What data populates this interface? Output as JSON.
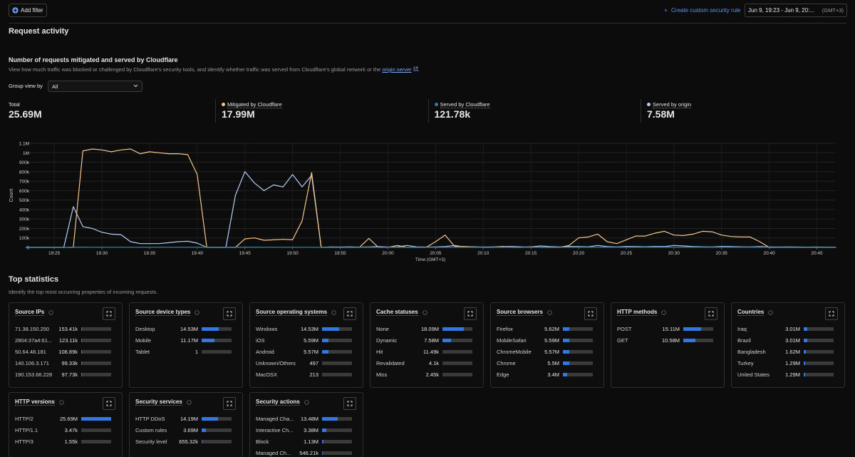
{
  "header": {
    "add_filter": "Add filter",
    "create_rule": "Create custom security rule",
    "date_range": "Jun 9, 19:23 - Jun 9, 20:...",
    "timezone": "(GMT+3)"
  },
  "request_activity": {
    "title": "Request activity",
    "subtitle": "Number of requests mitigated and served by Cloudflare",
    "description": "View how much traffic was blocked or challenged by Cloudflare's security tools, and identify whether traffic was served from Cloudflare's global network or the",
    "link": "origin server",
    "description_end": ".",
    "group_view_label": "Group view by",
    "group_view_value": "All",
    "total_name": "Total",
    "total": {
      "value": 25690000,
      "label": "25.69M"
    }
  },
  "chart_data": {
    "type": "line",
    "xlabel": "Time (GMT+3)",
    "ylabel": "Count",
    "categories": [
      null,
      null,
      null,
      "19:25",
      null,
      null,
      null,
      null,
      "19:30",
      null,
      null,
      null,
      null,
      "19:35",
      null,
      null,
      null,
      null,
      "19:40",
      null,
      null,
      null,
      null,
      "19:45",
      null,
      null,
      null,
      null,
      "19:50",
      null,
      null,
      null,
      null,
      "19:55",
      null,
      null,
      null,
      null,
      "20:00",
      null,
      null,
      null,
      null,
      "20:05",
      null,
      null,
      null,
      null,
      "20:10",
      null,
      null,
      null,
      null,
      "20:15",
      null,
      null,
      null,
      null,
      "20:20",
      null,
      null,
      null,
      null,
      "20:25",
      null,
      null,
      null,
      null,
      "20:30",
      null,
      null,
      null,
      null,
      "20:35",
      null,
      null,
      null,
      null,
      "20:40",
      null,
      null,
      null,
      null,
      "20:45",
      null,
      null
    ],
    "ylim": [
      0,
      1100000
    ],
    "yticks": [
      0,
      {
        "value": 100000,
        "label": "100k"
      },
      {
        "value": 200000,
        "label": "200k"
      },
      {
        "value": 300000,
        "label": "300k"
      },
      {
        "value": 400000,
        "label": "400k"
      },
      {
        "value": 500000,
        "label": "500k"
      },
      {
        "value": 600000,
        "label": "600k"
      },
      {
        "value": 700000,
        "label": "700k"
      },
      {
        "value": 800000,
        "label": "800k"
      },
      {
        "value": 900000,
        "label": "900k"
      },
      {
        "value": 1000000,
        "label": "1M"
      },
      {
        "value": 1100000,
        "label": "1.1M"
      }
    ],
    "grid": true,
    "series": [
      {
        "name": "Mitigated by Cloudflare",
        "color": "#f5c48f",
        "total": {
          "value": 17990000,
          "label": "17.99M"
        },
        "values": [
          0,
          0,
          0,
          0,
          0,
          0,
          1020000,
          1040000,
          1030000,
          1010000,
          1030000,
          1040000,
          990000,
          1010000,
          1000000,
          990000,
          990000,
          980000,
          770000,
          0,
          0,
          0,
          0,
          90000,
          100000,
          75000,
          80000,
          85000,
          80000,
          280000,
          790000,
          0,
          0,
          0,
          0,
          0,
          95000,
          0,
          0,
          20000,
          0,
          0,
          0,
          60000,
          130000,
          10000,
          10000,
          5000,
          0,
          0,
          10000,
          0,
          0,
          5000,
          0,
          0,
          0,
          20000,
          100000,
          110000,
          140000,
          60000,
          40000,
          80000,
          120000,
          120000,
          150000,
          170000,
          130000,
          125000,
          140000,
          170000,
          165000,
          130000,
          115000,
          110000,
          110000,
          60000,
          0,
          0,
          0,
          0,
          0,
          0,
          0,
          0
        ]
      },
      {
        "name": "Served by Cloudflare",
        "color": "#2a7fa8",
        "total": {
          "value": 121780,
          "label": "121.78k"
        },
        "values": [
          0,
          0,
          0,
          0,
          0,
          3000,
          3000,
          2000,
          2000,
          2000,
          2000,
          2000,
          2000,
          2000,
          2000,
          2000,
          2000,
          2000,
          2000,
          1000,
          1000,
          1000,
          3000,
          3000,
          3000,
          2000,
          2000,
          2000,
          2000,
          2000,
          2000,
          1000,
          1000,
          1000,
          1000,
          1000,
          1000,
          1000,
          1000,
          1000,
          1000,
          1000,
          1000,
          1000,
          1000,
          1000,
          1000,
          1000,
          1000,
          1000,
          1000,
          1000,
          1000,
          1000,
          1000,
          1000,
          1000,
          1000,
          2000,
          2000,
          2000,
          2000,
          2000,
          2000,
          2000,
          2000,
          2000,
          2000,
          2000,
          2000,
          2000,
          2000,
          2000,
          2000,
          2000,
          2000,
          2000,
          2000,
          2000,
          1000,
          1000,
          1000,
          1000,
          1000,
          1000,
          1000
        ]
      },
      {
        "name": "Served by origin",
        "color": "#b3cdf7",
        "total": {
          "value": 7580000,
          "label": "7.58M"
        },
        "values": [
          0,
          0,
          0,
          0,
          0,
          430000,
          220000,
          200000,
          160000,
          140000,
          135000,
          60000,
          40000,
          40000,
          40000,
          50000,
          60000,
          65000,
          45000,
          0,
          0,
          0,
          550000,
          800000,
          680000,
          600000,
          660000,
          640000,
          770000,
          640000,
          760000,
          0,
          5000,
          4000,
          6000,
          3000,
          5000,
          8000,
          4000,
          5000,
          20000,
          6000,
          4000,
          5000,
          8000,
          20000,
          5000,
          6000,
          4000,
          5000,
          8000,
          10000,
          6000,
          5000,
          15000,
          8000,
          5000,
          10000,
          8000,
          6000,
          20000,
          8000,
          5000,
          10000,
          8000,
          6000,
          10000,
          8000,
          20000,
          15000,
          8000,
          6000,
          5000,
          10000,
          8000,
          6000,
          5000,
          8000,
          5000,
          4000,
          5000,
          4000,
          3000,
          4000,
          3000,
          2000
        ]
      }
    ]
  },
  "top_statistics": {
    "title": "Top statistics",
    "description": "Identify the top most occurring properties of incoming requests.",
    "cards": [
      {
        "title": "Source IPs",
        "rows": [
          {
            "name": "71.38.150.250",
            "value": 153410,
            "label": "153.41k"
          },
          {
            "name": "2804:37a4:61...",
            "value": 123110,
            "label": "123.11k"
          },
          {
            "name": "50.64.48.181",
            "value": 108890,
            "label": "108.89k"
          },
          {
            "name": "140.106.3.171",
            "value": 99330,
            "label": "99.33k"
          },
          {
            "name": "190.153.66.228",
            "value": 97730,
            "label": "97.73k"
          }
        ]
      },
      {
        "title": "Source device types",
        "rows": [
          {
            "name": "Desktop",
            "value": 14530000,
            "label": "14.53M"
          },
          {
            "name": "Mobile",
            "value": 11170000,
            "label": "11.17M"
          },
          {
            "name": "Tablet",
            "value": 1
          }
        ]
      },
      {
        "title": "Source operating systems",
        "rows": [
          {
            "name": "Windows",
            "value": 14530000,
            "label": "14.53M"
          },
          {
            "name": "iOS",
            "value": 5590000,
            "label": "5.59M"
          },
          {
            "name": "Android",
            "value": 5570000,
            "label": "5.57M"
          },
          {
            "name": "Unknown/Others",
            "value": 497
          },
          {
            "name": "MacOSX",
            "value": 213
          }
        ]
      },
      {
        "title": "Cache statuses",
        "rows": [
          {
            "name": "None",
            "value": 18090000,
            "label": "18.09M"
          },
          {
            "name": "Dynamic",
            "value": 7580000,
            "label": "7.58M"
          },
          {
            "name": "Hit",
            "value": 11490,
            "label": "11.49k"
          },
          {
            "name": "Revalidated",
            "value": 4100,
            "label": "4.1k"
          },
          {
            "name": "Miss",
            "value": 2450,
            "label": "2.45k"
          }
        ]
      },
      {
        "title": "Source browsers",
        "rows": [
          {
            "name": "Firefox",
            "value": 5620000,
            "label": "5.62M"
          },
          {
            "name": "MobileSafari",
            "value": 5590000,
            "label": "5.59M"
          },
          {
            "name": "ChromeMobile",
            "value": 5570000,
            "label": "5.57M"
          },
          {
            "name": "Chrome",
            "value": 5500000,
            "label": "5.5M"
          },
          {
            "name": "Edge",
            "value": 3400000,
            "label": "3.4M"
          }
        ]
      },
      {
        "title": "HTTP methods",
        "rows": [
          {
            "name": "POST",
            "value": 15110000,
            "label": "15.11M"
          },
          {
            "name": "GET",
            "value": 10580000,
            "label": "10.58M"
          }
        ]
      },
      {
        "title": "Countries",
        "rows": [
          {
            "name": "Iraq",
            "value": 3010000,
            "label": "3.01M"
          },
          {
            "name": "Brazil",
            "value": 3010000,
            "label": "3.01M"
          },
          {
            "name": "Bangladesh",
            "value": 1620000,
            "label": "1.62M"
          },
          {
            "name": "Turkey",
            "value": 1290000,
            "label": "1.29M"
          },
          {
            "name": "United States",
            "value": 1290000,
            "label": "1.29M"
          }
        ]
      },
      {
        "title": "HTTP versions",
        "rows": [
          {
            "name": "HTTP/2",
            "value": 25690000,
            "label": "25.69M"
          },
          {
            "name": "HTTP/1.1",
            "value": 3470,
            "label": "3.47k"
          },
          {
            "name": "HTTP/3",
            "value": 1550,
            "label": "1.55k"
          }
        ]
      },
      {
        "title": "Security services",
        "rows": [
          {
            "name": "HTTP DDoS",
            "value": 14190000,
            "label": "14.19M"
          },
          {
            "name": "Custom rules",
            "value": 3690000,
            "label": "3.69M"
          },
          {
            "name": "Security level",
            "value": 655320,
            "label": "655.32k"
          }
        ]
      },
      {
        "title": "Security actions",
        "rows": [
          {
            "name": "Managed Cha...",
            "value": 13480000,
            "label": "13.48M"
          },
          {
            "name": "Interactive Ch...",
            "value": 3380000,
            "label": "3.38M"
          },
          {
            "name": "Block",
            "value": 1130000,
            "label": "1.13M"
          },
          {
            "name": "Managed Ch...",
            "value": 546210,
            "label": "546.21k"
          }
        ]
      }
    ]
  }
}
